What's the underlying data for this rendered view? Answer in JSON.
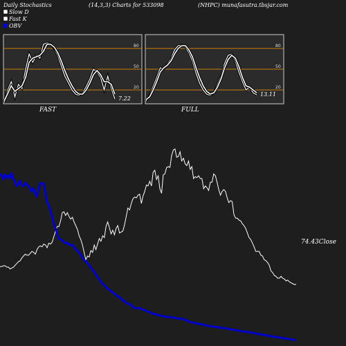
{
  "header": {
    "left": "Daily Stochastics",
    "middle": "(14,3,3) Charts for 533098",
    "right": "(NHPC) munafasutra.tbsjar.com"
  },
  "legend": [
    {
      "label": "Slow  D",
      "swatch": "#ffffff"
    },
    {
      "label": "Fast  K",
      "swatch": "#ffffff"
    },
    {
      "label": "OBV",
      "swatch": "#0000cc"
    }
  ],
  "colors": {
    "background": "#1e1e1e",
    "panel_bg": "#2b2b2b",
    "level_line": "#c8820a",
    "price_line": "#ffffff",
    "obv_line": "#0000cc"
  },
  "chart_data": [
    {
      "type": "line",
      "panel": "FAST",
      "title": "FAST",
      "ylim": [
        0,
        100
      ],
      "yticks": [
        20,
        50,
        80
      ],
      "last_value_label": "7.22",
      "series": [
        {
          "name": "Fast  K",
          "values": [
            2,
            20,
            32,
            10,
            28,
            22,
            50,
            72,
            60,
            70,
            66,
            86,
            88,
            87,
            80,
            70,
            55,
            40,
            30,
            20,
            14,
            12,
            16,
            25,
            36,
            50,
            46,
            38,
            20,
            40,
            22,
            7
          ]
        },
        {
          "name": "Slow  D",
          "values": [
            4,
            15,
            26,
            18,
            22,
            26,
            38,
            60,
            66,
            68,
            70,
            76,
            86,
            86,
            82,
            74,
            62,
            48,
            36,
            26,
            18,
            14,
            14,
            20,
            30,
            42,
            48,
            42,
            32,
            32,
            28,
            14
          ]
        }
      ]
    },
    {
      "type": "line",
      "panel": "FULL",
      "title": "FULL",
      "ylim": [
        0,
        100
      ],
      "yticks": [
        20,
        50,
        80
      ],
      "last_value_label": "13.11",
      "series": [
        {
          "name": "Fast  K",
          "values": [
            4,
            12,
            25,
            38,
            52,
            50,
            58,
            65,
            78,
            84,
            85,
            82,
            74,
            62,
            44,
            30,
            20,
            14,
            12,
            16,
            28,
            40,
            58,
            70,
            72,
            62,
            46,
            32,
            20,
            24,
            16,
            13
          ]
        },
        {
          "name": "Slow  D",
          "values": [
            6,
            10,
            20,
            32,
            46,
            52,
            56,
            62,
            72,
            80,
            84,
            84,
            78,
            68,
            52,
            38,
            26,
            18,
            14,
            16,
            24,
            36,
            52,
            64,
            70,
            66,
            54,
            38,
            26,
            24,
            20,
            16
          ]
        }
      ]
    },
    {
      "type": "line",
      "panel": "price",
      "last_value_label": "74.43Close",
      "series": [
        {
          "name": "price",
          "values": [
            93.5,
            93.5,
            94.5,
            94.5,
            93,
            93,
            91,
            92,
            93,
            95,
            97,
            99,
            100,
            103,
            105,
            107,
            106,
            106,
            108,
            110,
            109,
            107,
            112,
            115,
            116,
            115,
            118,
            117,
            114,
            119,
            118,
            120,
            126,
            132,
            137,
            137,
            143,
            152,
            153,
            149,
            152,
            148,
            145,
            147,
            142,
            138,
            134,
            127,
            123,
            117,
            109,
            101,
            105,
            104,
            111,
            109,
            117,
            112,
            118,
            124,
            121,
            127,
            125,
            137,
            142,
            136,
            129,
            133,
            128,
            135,
            138,
            130,
            131,
            132,
            139,
            148,
            157,
            155,
            162,
            167,
            169,
            168,
            171,
            172,
            162,
            170,
            175,
            182,
            181,
            186,
            181,
            196,
            198,
            188,
            192,
            178,
            173,
            193,
            194,
            201,
            202,
            201,
            214,
            220,
            221,
            212,
            213,
            218,
            208,
            211,
            205,
            203,
            208,
            199,
            202,
            189,
            191,
            190,
            192,
            189,
            189,
            178,
            181,
            179,
            176,
            185,
            185,
            194,
            192,
            185,
            177,
            171,
            175,
            177,
            175,
            168,
            163,
            165,
            164,
            150,
            146,
            146,
            144,
            143,
            140,
            138,
            135,
            130,
            125,
            123,
            119,
            115,
            110,
            110,
            110,
            106,
            105,
            101,
            100,
            98,
            95,
            89,
            87,
            84,
            83,
            81,
            81,
            83,
            81,
            80,
            78,
            79,
            77,
            76,
            75,
            74,
            74.43
          ]
        }
      ]
    },
    {
      "type": "line",
      "panel": "OBV",
      "series": [
        {
          "name": "OBV",
          "values": [
            250,
            248,
            242,
            249,
            244,
            248,
            243,
            251,
            243,
            238,
            232,
            235,
            240,
            233,
            232,
            236,
            235,
            232,
            228,
            224,
            229,
            221,
            217,
            228,
            236,
            236,
            236,
            224,
            209,
            205,
            197,
            188,
            178,
            171,
            163,
            156,
            155,
            153,
            151,
            149,
            150,
            148,
            146,
            147,
            144,
            140,
            139,
            135,
            133,
            128,
            125,
            123,
            120,
            118,
            114,
            110,
            108,
            104,
            100,
            97,
            93,
            90,
            88,
            86,
            83,
            82,
            79,
            78,
            76,
            74,
            72,
            71,
            69,
            66,
            65,
            63,
            61,
            61,
            59,
            57,
            55,
            55,
            55,
            55,
            54,
            53,
            52,
            51,
            50,
            49,
            48,
            47,
            46,
            46,
            45,
            44,
            44,
            43,
            43,
            42,
            42,
            42,
            42,
            41,
            41,
            40,
            40,
            40,
            39,
            39,
            38,
            37,
            36,
            35,
            34,
            34,
            33,
            33,
            32,
            32,
            31,
            31,
            30,
            30,
            29,
            29,
            28,
            28,
            28,
            27,
            27,
            27,
            26,
            26,
            26,
            25,
            25,
            24,
            24,
            24,
            23,
            23,
            22,
            22,
            21,
            21,
            21,
            20,
            20,
            20,
            19,
            19,
            18,
            18,
            17,
            17,
            16,
            16,
            16,
            15,
            15,
            14,
            14,
            13,
            13,
            13,
            12,
            12,
            12,
            11,
            11,
            10,
            10,
            10,
            9,
            9,
            8
          ]
        }
      ]
    }
  ]
}
